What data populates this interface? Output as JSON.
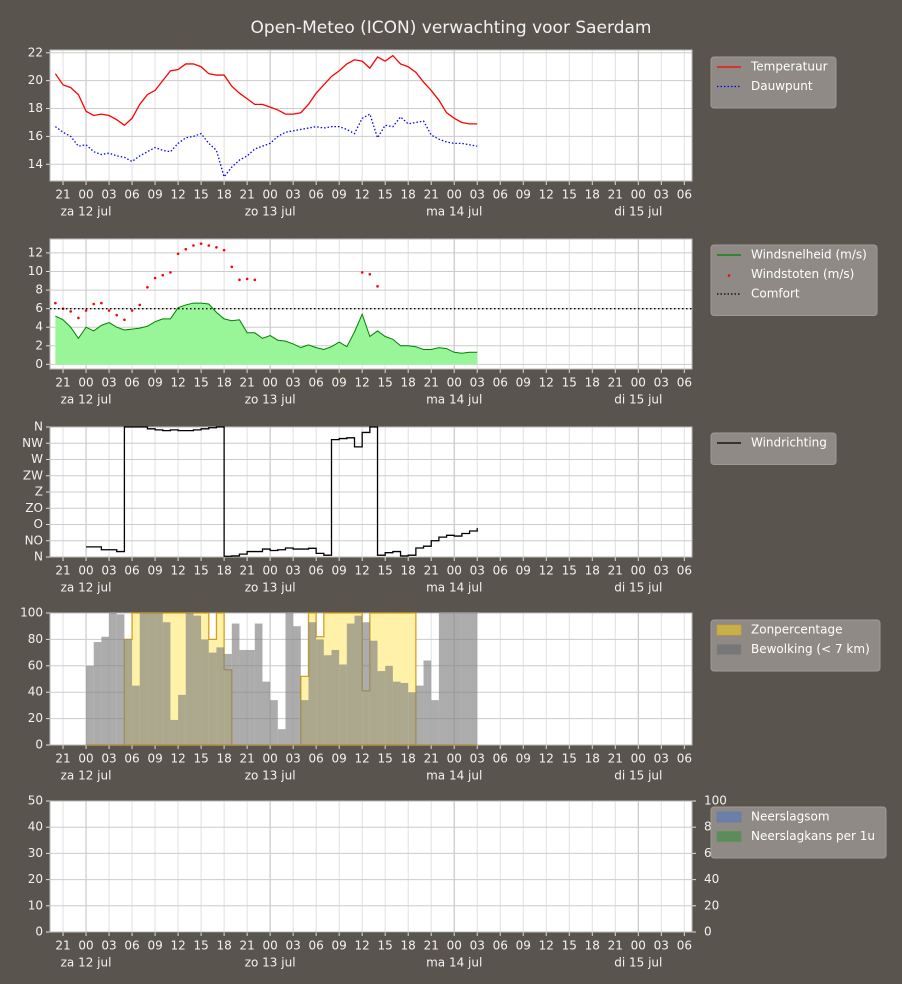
{
  "title": "Open-Meteo (ICON) verwachting voor Saerdam",
  "time_axis": {
    "xlim": [
      -4.7,
      79
    ],
    "xticks": [
      {
        "value": -3,
        "label": "21"
      },
      {
        "value": 0,
        "label": "00"
      },
      {
        "value": 3,
        "label": "03"
      },
      {
        "value": 6,
        "label": "06"
      },
      {
        "value": 9,
        "label": "09"
      },
      12,
      15,
      18,
      21,
      {
        "value": 24,
        "label": "00"
      },
      {
        "value": 27,
        "label": "03"
      },
      {
        "value": 30,
        "label": "06"
      },
      {
        "value": 33,
        "label": "09"
      },
      {
        "value": 36,
        "label": "12"
      },
      {
        "value": 39,
        "label": "15"
      },
      {
        "value": 42,
        "label": "18"
      },
      {
        "value": 45,
        "label": "21"
      },
      {
        "value": 48,
        "label": "00"
      },
      {
        "value": 51,
        "label": "03"
      },
      {
        "value": 54,
        "label": "06"
      },
      {
        "value": 57,
        "label": "09"
      },
      {
        "value": 60,
        "label": "12"
      },
      {
        "value": 63,
        "label": "15"
      },
      {
        "value": 66,
        "label": "18"
      },
      {
        "value": 69,
        "label": "21"
      },
      {
        "value": 72,
        "label": "00"
      },
      {
        "value": 75,
        "label": "03"
      },
      {
        "value": 78,
        "label": "06"
      }
    ],
    "day_labels": [
      {
        "value": 0,
        "label": "za 12 jul"
      },
      {
        "value": 24,
        "label": "zo 13 jul"
      },
      {
        "value": 48,
        "label": "ma 14 jul"
      },
      {
        "value": 72,
        "label": "di 15 jul"
      }
    ]
  },
  "chart_data": [
    {
      "type": "line",
      "ylim": [
        12.8,
        22.2
      ],
      "yticks": [
        14,
        16,
        18,
        20,
        22
      ],
      "grid": true,
      "x": [
        -4,
        -3,
        -2,
        -1,
        0,
        1,
        2,
        3,
        4,
        5,
        6,
        7,
        8,
        9,
        10,
        11,
        12,
        13,
        14,
        15,
        16,
        17,
        18,
        19,
        20,
        21,
        22,
        23,
        24,
        25,
        26,
        27,
        28,
        29,
        30,
        31,
        32,
        33,
        34,
        35,
        36,
        37,
        38,
        39,
        40,
        41,
        42,
        43,
        44,
        45,
        46,
        47,
        48,
        49,
        50,
        51
      ],
      "series": [
        {
          "name": "Temperatuur",
          "type": "line",
          "color": "#ff0000",
          "values": [
            20.5,
            19.7,
            19.5,
            19.0,
            17.8,
            17.5,
            17.6,
            17.5,
            17.2,
            16.8,
            17.3,
            18.3,
            19.0,
            19.3,
            20.0,
            20.7,
            20.8,
            21.2,
            21.2,
            21.0,
            20.5,
            20.4,
            20.4,
            19.6,
            19.1,
            18.7,
            18.3,
            18.3,
            18.1,
            17.9,
            17.6,
            17.6,
            17.7,
            18.3,
            19.1,
            19.7,
            20.3,
            20.7,
            21.2,
            21.5,
            21.4,
            20.9,
            21.7,
            21.4,
            21.8,
            21.2,
            21.0,
            20.6,
            19.9,
            19.3,
            18.6,
            17.7,
            17.3,
            17.0,
            16.9,
            16.9
          ]
        },
        {
          "name": "Dauwpunt",
          "type": "dotted",
          "color": "#0000ff",
          "values": [
            16.7,
            16.3,
            16.0,
            15.3,
            15.4,
            14.9,
            14.7,
            14.8,
            14.6,
            14.5,
            14.2,
            14.6,
            14.9,
            15.2,
            15.0,
            14.9,
            15.5,
            15.9,
            16.0,
            16.2,
            15.5,
            15.0,
            13.1,
            13.8,
            14.3,
            14.6,
            15.1,
            15.3,
            15.5,
            16.0,
            16.3,
            16.4,
            16.5,
            16.6,
            16.7,
            16.6,
            16.7,
            16.7,
            16.5,
            16.2,
            17.3,
            17.6,
            15.9,
            16.8,
            16.7,
            17.4,
            16.9,
            17.0,
            17.1,
            16.1,
            15.8,
            15.6,
            15.5,
            15.5,
            15.4,
            15.3
          ]
        }
      ]
    },
    {
      "type": "line",
      "ylim": [
        -0.5,
        13.5
      ],
      "yticks": [
        0,
        2,
        4,
        6,
        8,
        10,
        12
      ],
      "grid": true,
      "x": [
        -4,
        -3,
        -2,
        -1,
        0,
        1,
        2,
        3,
        4,
        5,
        6,
        7,
        8,
        9,
        10,
        11,
        12,
        13,
        14,
        15,
        16,
        17,
        18,
        19,
        20,
        21,
        22,
        23,
        24,
        25,
        26,
        27,
        28,
        29,
        30,
        31,
        32,
        33,
        34,
        35,
        36,
        37,
        38,
        39,
        40,
        41,
        42,
        43,
        44,
        45,
        46,
        47,
        48,
        49,
        50,
        51
      ],
      "series": [
        {
          "name": "Windsnelheid (m/s)",
          "type": "area",
          "color": "#008000",
          "fill": "#98f598",
          "values": [
            5.2,
            4.8,
            4.0,
            2.8,
            4.0,
            3.6,
            4.2,
            4.5,
            4.0,
            3.7,
            3.8,
            3.9,
            4.1,
            4.6,
            4.9,
            4.9,
            6.1,
            6.4,
            6.6,
            6.6,
            6.5,
            5.6,
            4.9,
            4.7,
            4.8,
            3.4,
            3.4,
            2.8,
            3.1,
            2.6,
            2.5,
            2.2,
            1.8,
            2.1,
            1.8,
            1.6,
            1.9,
            2.4,
            1.9,
            3.5,
            5.4,
            3.0,
            3.6,
            3.0,
            2.7,
            2.0,
            2.0,
            1.9,
            1.6,
            1.6,
            1.8,
            1.7,
            1.3,
            1.2,
            1.3,
            1.3
          ]
        },
        {
          "name": "Windstoten (m/s)",
          "type": "dots",
          "color": "#ff0000",
          "values": [
            6.6,
            6.0,
            5.7,
            5.0,
            5.8,
            6.5,
            6.6,
            5.8,
            5.3,
            4.8,
            5.8,
            6.4,
            8.3,
            9.3,
            9.6,
            9.9,
            11.9,
            12.4,
            12.8,
            13.0,
            12.8,
            12.6,
            12.3,
            10.5,
            9.1,
            9.2,
            9.1,
            null,
            null,
            null,
            null,
            null,
            null,
            null,
            null,
            null,
            null,
            null,
            null,
            null,
            9.9,
            9.7,
            8.4,
            null,
            null,
            null,
            null,
            null,
            null,
            null,
            null,
            null,
            null,
            null,
            null,
            null
          ]
        },
        {
          "name": "Comfort",
          "type": "hline",
          "color": "#000000",
          "value": 6
        }
      ]
    },
    {
      "type": "step",
      "ylim": [
        0,
        360
      ],
      "grid": true,
      "yticks": [
        {
          "value": 0,
          "label": "N"
        },
        {
          "value": 45,
          "label": "NO"
        },
        {
          "value": 90,
          "label": "O"
        },
        {
          "value": 135,
          "label": "ZO"
        },
        {
          "value": 180,
          "label": "Z"
        },
        {
          "value": 225,
          "label": "ZW"
        },
        {
          "value": 270,
          "label": "W"
        },
        {
          "value": 315,
          "label": "NW"
        },
        {
          "value": 360,
          "label": "N"
        }
      ],
      "x": [
        0,
        1,
        2,
        3,
        4,
        5,
        6,
        7,
        8,
        9,
        10,
        11,
        12,
        13,
        14,
        15,
        16,
        17,
        18,
        19,
        20,
        21,
        22,
        23,
        24,
        25,
        26,
        27,
        28,
        29,
        30,
        31,
        32,
        33,
        34,
        35,
        36,
        37,
        38,
        39,
        40,
        41,
        42,
        43,
        44,
        45,
        46,
        47,
        48,
        49,
        50,
        51
      ],
      "series": [
        {
          "name": "Windrichting",
          "type": "step",
          "color": "#000000",
          "values": [
            28,
            28,
            20,
            20,
            15,
            360,
            360,
            360,
            355,
            352,
            350,
            352,
            350,
            350,
            352,
            355,
            358,
            360,
            2,
            3,
            8,
            15,
            15,
            22,
            18,
            20,
            25,
            22,
            22,
            24,
            10,
            5,
            325,
            328,
            330,
            305,
            345,
            360,
            5,
            12,
            15,
            3,
            5,
            25,
            30,
            45,
            55,
            60,
            58,
            65,
            72,
            80
          ]
        }
      ]
    },
    {
      "type": "bar",
      "ylim": [
        0,
        100
      ],
      "yticks": [
        0,
        20,
        40,
        60,
        80,
        100
      ],
      "grid": true,
      "x": [
        0,
        1,
        2,
        3,
        4,
        5,
        6,
        7,
        8,
        9,
        10,
        11,
        12,
        13,
        14,
        15,
        16,
        17,
        18,
        19,
        20,
        21,
        22,
        23,
        24,
        25,
        26,
        27,
        28,
        29,
        30,
        31,
        32,
        33,
        34,
        35,
        36,
        37,
        38,
        39,
        40,
        41,
        42,
        43,
        44,
        45,
        46,
        47,
        48,
        49,
        50
      ],
      "series": [
        {
          "name": "Zonpercentage",
          "type": "steparea",
          "color": "#d4a020",
          "fill": "#fff2a8",
          "legend_color": "#c8b048",
          "values": [
            0,
            0,
            0,
            0,
            0,
            80,
            100,
            100,
            100,
            100,
            100,
            100,
            100,
            100,
            100,
            100,
            80,
            100,
            57,
            0,
            0,
            0,
            0,
            0,
            0,
            0,
            0,
            0,
            52,
            100,
            82,
            100,
            100,
            100,
            100,
            100,
            41,
            100,
            100,
            100,
            100,
            100,
            100,
            0,
            0,
            0,
            0,
            0,
            0,
            0,
            0
          ]
        },
        {
          "name": "Bewolking (< 7 km)",
          "type": "bar",
          "color": "#808080",
          "legend_color": "#777777",
          "values": [
            60,
            78,
            82,
            100,
            99,
            80,
            45,
            100,
            100,
            100,
            93,
            19,
            38,
            100,
            98,
            80,
            70,
            74,
            69,
            92,
            72,
            72,
            92,
            48,
            34,
            12,
            100,
            90,
            34,
            93,
            80,
            68,
            72,
            61,
            92,
            98,
            93,
            79,
            56,
            60,
            48,
            47,
            40,
            45,
            64,
            34,
            100,
            100,
            100,
            100,
            100
          ]
        }
      ]
    },
    {
      "type": "bar",
      "ylim": [
        0,
        50
      ],
      "yticks": [
        0,
        10,
        20,
        30,
        40,
        50
      ],
      "y2lim": [
        0,
        100
      ],
      "y2ticks": [
        0,
        20,
        40,
        60,
        80,
        100
      ],
      "grid": true,
      "x": [
        0,
        1,
        2,
        3,
        4,
        5,
        6,
        7,
        8,
        9,
        10,
        11,
        12,
        13,
        14,
        15,
        16,
        17,
        18,
        19,
        20,
        21,
        22,
        23,
        24,
        25,
        26,
        27,
        28,
        29,
        30,
        31,
        32,
        33,
        34,
        35,
        36,
        37,
        38,
        39,
        40,
        41,
        42,
        43,
        44,
        45,
        46,
        47,
        48,
        49,
        50
      ],
      "series": [
        {
          "name": "Neerslagsom",
          "type": "bar",
          "color": "#5a78b4",
          "legend_color": "#6a80a8",
          "values": [
            0,
            0,
            0,
            0,
            0,
            0,
            0,
            0,
            0,
            0,
            0,
            0,
            0,
            0,
            0,
            0,
            0,
            0,
            0,
            0,
            0,
            0,
            0,
            0,
            0,
            0,
            0,
            0,
            0,
            0,
            0,
            0,
            0,
            0,
            0,
            0,
            0,
            0,
            0,
            0,
            0,
            0,
            0,
            0,
            0,
            0,
            0,
            0,
            0,
            0,
            0
          ]
        },
        {
          "name": "Neerslagkans per 1u",
          "type": "bar",
          "axis": "y2",
          "color": "#4c9a4c",
          "legend_color": "#5c8c5c",
          "values": [
            0,
            0,
            0,
            0,
            0,
            0,
            0,
            0,
            0,
            0,
            0,
            0,
            0,
            0,
            0,
            0,
            0,
            0,
            0,
            0,
            0,
            0,
            0,
            0,
            0,
            0,
            0,
            0,
            0,
            0,
            0,
            0,
            0,
            0,
            0,
            0,
            0,
            0,
            0,
            0,
            0,
            0,
            0,
            0,
            0,
            0,
            0,
            0,
            0,
            0,
            0
          ]
        }
      ]
    }
  ]
}
